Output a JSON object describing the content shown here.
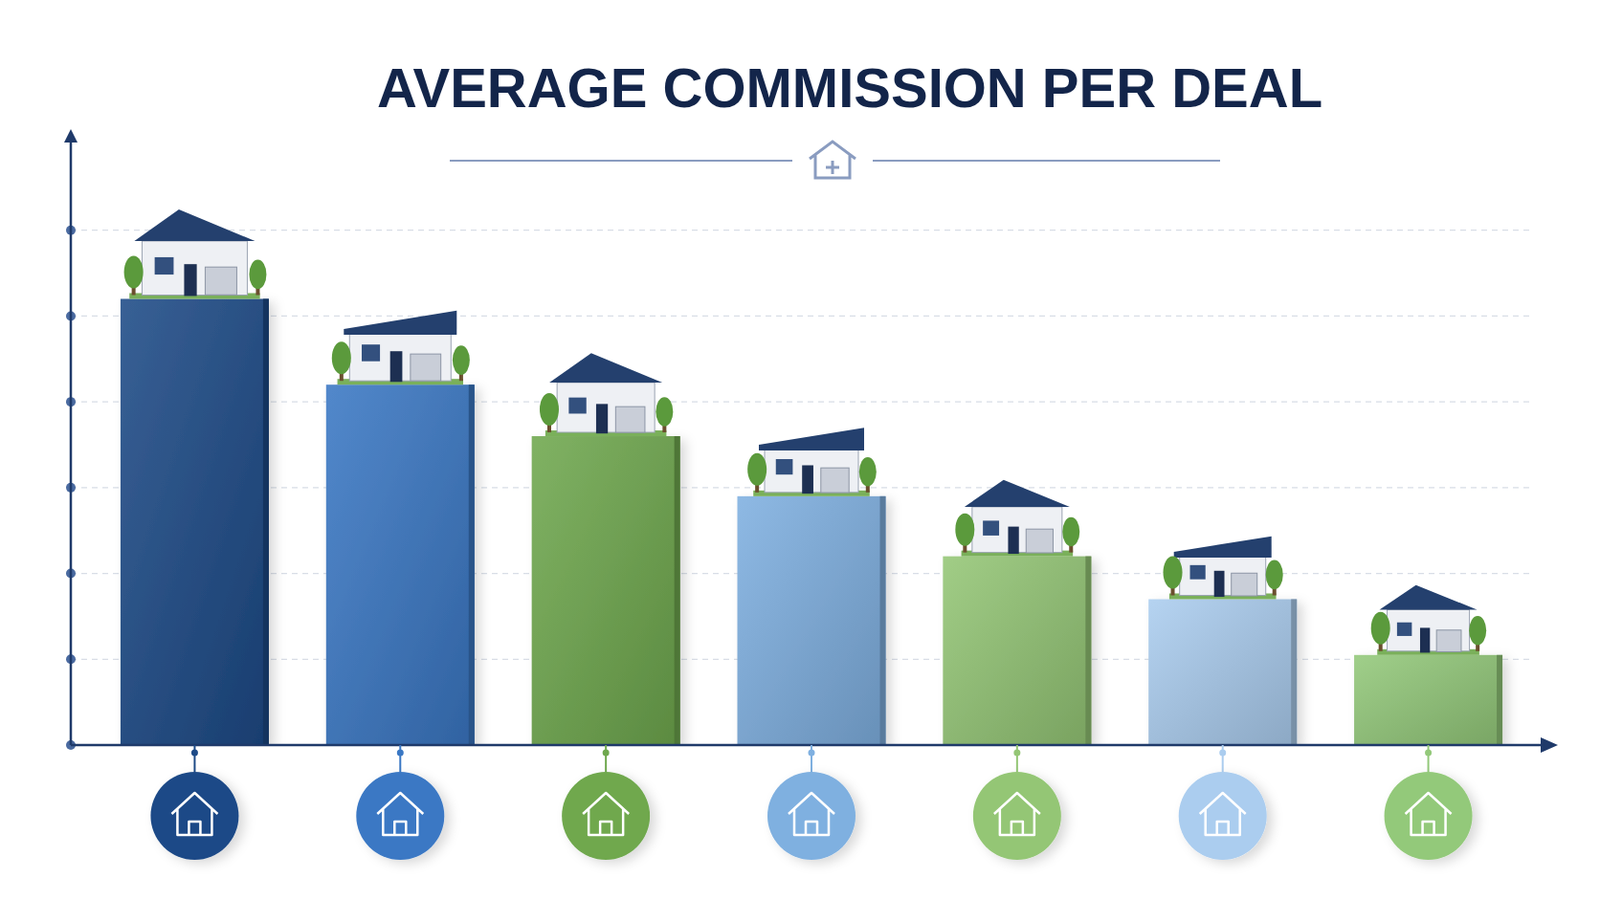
{
  "chart_data": {
    "type": "bar",
    "title": "AVERAGE COMMISSION PER DEAL",
    "categories": [
      null,
      null,
      null,
      null,
      null,
      null,
      null
    ],
    "values": [
      5.2,
      4.2,
      3.6,
      2.9,
      2.2,
      1.7,
      1.05
    ],
    "colors": [
      "#1d4a87",
      "#3a78c4",
      "#6fa84e",
      "#7fb0e0",
      "#94c675",
      "#abcdef",
      "#93c97a"
    ],
    "ylim": [
      0,
      7
    ],
    "yticks": [
      0,
      1,
      2,
      3,
      4,
      5,
      6
    ],
    "grid": true,
    "tick_labels": false
  }
}
